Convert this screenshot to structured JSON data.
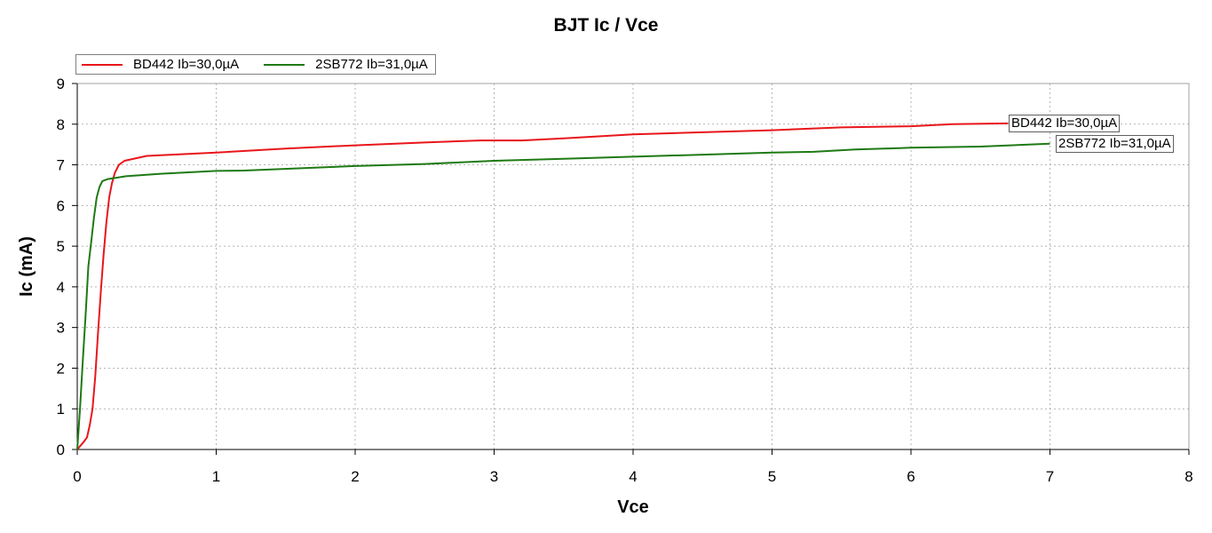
{
  "chart_data": {
    "type": "line",
    "title": "BJT Ic / Vce",
    "xlabel": "Vce",
    "ylabel": "Ic (mA)",
    "xlim": [
      0,
      8
    ],
    "ylim": [
      0,
      9
    ],
    "x_ticks": [
      "0",
      "1",
      "2",
      "3",
      "4",
      "5",
      "6",
      "7",
      "8"
    ],
    "y_ticks": [
      "0",
      "1",
      "2",
      "3",
      "4",
      "5",
      "6",
      "7",
      "8",
      "9"
    ],
    "grid": true,
    "legend_position": "top-left",
    "series": [
      {
        "name": "BD442 Ib=30,0µA",
        "color": "#e8161b",
        "x": [
          0,
          0.05,
          0.07,
          0.09,
          0.11,
          0.13,
          0.15,
          0.17,
          0.19,
          0.21,
          0.23,
          0.25,
          0.27,
          0.3,
          0.34,
          0.5,
          1.0,
          1.5,
          2.0,
          2.5,
          2.9,
          3.2,
          3.5,
          4.0,
          4.5,
          5.0,
          5.5,
          6.0,
          6.3,
          6.7
        ],
        "y": [
          0,
          0.2,
          0.3,
          0.6,
          1.0,
          1.8,
          2.9,
          3.9,
          4.8,
          5.6,
          6.2,
          6.55,
          6.8,
          7.0,
          7.1,
          7.22,
          7.3,
          7.4,
          7.48,
          7.55,
          7.6,
          7.6,
          7.65,
          7.75,
          7.8,
          7.85,
          7.92,
          7.95,
          8.0,
          8.02
        ]
      },
      {
        "name": "2SB772 Ib=31,0µA",
        "color": "#1e7a14",
        "x": [
          0,
          0.02,
          0.04,
          0.06,
          0.08,
          0.1,
          0.12,
          0.14,
          0.16,
          0.18,
          0.22,
          0.35,
          0.6,
          1.0,
          1.2,
          2.0,
          2.5,
          3.0,
          3.5,
          4.0,
          4.5,
          5.0,
          5.3,
          5.6,
          6.0,
          6.5,
          7.0
        ],
        "y": [
          0,
          1.0,
          2.2,
          3.3,
          4.5,
          5.1,
          5.7,
          6.2,
          6.45,
          6.6,
          6.65,
          6.72,
          6.78,
          6.85,
          6.86,
          6.97,
          7.02,
          7.1,
          7.15,
          7.2,
          7.25,
          7.3,
          7.32,
          7.38,
          7.42,
          7.45,
          7.52
        ]
      }
    ],
    "end_labels": [
      "BD442 Ib=30,0µA",
      "2SB772 Ib=31,0µA"
    ]
  }
}
